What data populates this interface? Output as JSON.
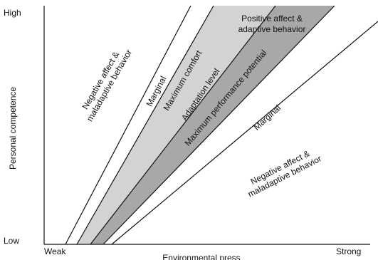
{
  "axes": {
    "y_label": "Personal competence",
    "y_high": "High",
    "y_low": "Low",
    "x_label": "Environmental press",
    "x_weak": "Weak",
    "x_strong": "Strong"
  },
  "regions": {
    "upper_negative": [
      "Negative affect &",
      "maladaptive behavior"
    ],
    "upper_marginal": "Marginal",
    "maximum_comfort": "Maximum comfort",
    "adaptation_level": "Adaptation level",
    "maximum_performance": "Maximum performance potential",
    "positive": [
      "Positive affect &",
      "adaptive behavior"
    ],
    "lower_marginal": "Marginal",
    "lower_negative": [
      "Negative affect &",
      "maladaptive behavior"
    ]
  }
}
